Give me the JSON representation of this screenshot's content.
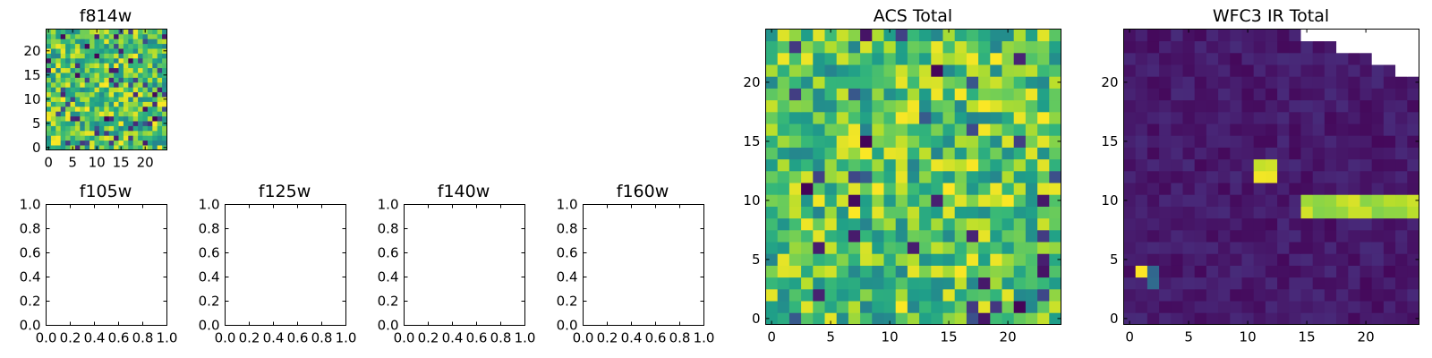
{
  "chart_data": [
    {
      "id": "p0",
      "type": "heatmap",
      "title": "f814w",
      "xlim": [
        -0.5,
        24.5
      ],
      "ylim": [
        -0.5,
        24.5
      ],
      "xticks": [
        0,
        5,
        10,
        15,
        20
      ],
      "yticks": [
        0,
        5,
        10,
        15,
        20
      ],
      "xtick_labels": [
        "0",
        "5",
        "10",
        "15",
        "20"
      ],
      "ytick_labels": [
        "0",
        "5",
        "10",
        "15",
        "20"
      ],
      "colormap": "viridis",
      "grid": false,
      "field": "noise"
    },
    {
      "id": "p1",
      "type": "heatmap",
      "title": "f105w",
      "xlim": [
        0,
        1
      ],
      "ylim": [
        0,
        1
      ],
      "xticks": [
        0,
        0.2,
        0.4,
        0.6,
        0.8,
        1.0
      ],
      "yticks": [
        0,
        0.2,
        0.4,
        0.6,
        0.8,
        1.0
      ],
      "xtick_labels": [
        "0.0",
        "0.2",
        "0.4",
        "0.6",
        "0.8",
        "1.0"
      ],
      "ytick_labels": [
        "0.0",
        "0.2",
        "0.4",
        "0.6",
        "0.8",
        "1.0"
      ],
      "grid": false,
      "field": "empty"
    },
    {
      "id": "p2",
      "type": "heatmap",
      "title": "f125w",
      "xlim": [
        0,
        1
      ],
      "ylim": [
        0,
        1
      ],
      "xticks": [
        0,
        0.2,
        0.4,
        0.6,
        0.8,
        1.0
      ],
      "yticks": [
        0,
        0.2,
        0.4,
        0.6,
        0.8,
        1.0
      ],
      "xtick_labels": [
        "0.0",
        "0.2",
        "0.4",
        "0.6",
        "0.8",
        "1.0"
      ],
      "ytick_labels": [
        "0.0",
        "0.2",
        "0.4",
        "0.6",
        "0.8",
        "1.0"
      ],
      "grid": false,
      "field": "empty"
    },
    {
      "id": "p3",
      "type": "heatmap",
      "title": "f140w",
      "xlim": [
        0,
        1
      ],
      "ylim": [
        0,
        1
      ],
      "xticks": [
        0,
        0.2,
        0.4,
        0.6,
        0.8,
        1.0
      ],
      "yticks": [
        0,
        0.2,
        0.4,
        0.6,
        0.8,
        1.0
      ],
      "xtick_labels": [
        "0.0",
        "0.2",
        "0.4",
        "0.6",
        "0.8",
        "1.0"
      ],
      "ytick_labels": [
        "0.0",
        "0.2",
        "0.4",
        "0.6",
        "0.8",
        "1.0"
      ],
      "grid": false,
      "field": "empty"
    },
    {
      "id": "p4",
      "type": "heatmap",
      "title": "f160w",
      "xlim": [
        0,
        1
      ],
      "ylim": [
        0,
        1
      ],
      "xticks": [
        0,
        0.2,
        0.4,
        0.6,
        0.8,
        1.0
      ],
      "yticks": [
        0,
        0.2,
        0.4,
        0.6,
        0.8,
        1.0
      ],
      "xtick_labels": [
        "0.0",
        "0.2",
        "0.4",
        "0.6",
        "0.8",
        "1.0"
      ],
      "ytick_labels": [
        "0.0",
        "0.2",
        "0.4",
        "0.6",
        "0.8",
        "1.0"
      ],
      "grid": false,
      "field": "empty"
    },
    {
      "id": "p5",
      "type": "heatmap",
      "title": "ACS Total",
      "xlim": [
        -0.5,
        24.5
      ],
      "ylim": [
        -0.5,
        24.5
      ],
      "xticks": [
        0,
        5,
        10,
        15,
        20
      ],
      "yticks": [
        0,
        5,
        10,
        15,
        20
      ],
      "xtick_labels": [
        "0",
        "5",
        "10",
        "15",
        "20"
      ],
      "ytick_labels": [
        "0",
        "5",
        "10",
        "15",
        "20"
      ],
      "colormap": "viridis",
      "grid": false,
      "field": "noise"
    },
    {
      "id": "p6",
      "type": "heatmap",
      "title": "WFC3 IR Total",
      "xlim": [
        -0.5,
        24.5
      ],
      "ylim": [
        -0.5,
        24.5
      ],
      "xticks": [
        0,
        5,
        10,
        15,
        20
      ],
      "yticks": [
        0,
        5,
        10,
        15,
        20
      ],
      "xtick_labels": [
        "0",
        "5",
        "10",
        "15",
        "20"
      ],
      "ytick_labels": [
        "0",
        "5",
        "10",
        "15",
        "20"
      ],
      "colormap": "viridis",
      "grid": false,
      "field": "sources",
      "bright_regions": [
        {
          "x": [
            11,
            12
          ],
          "y": [
            12,
            13
          ],
          "level": 0.85
        },
        {
          "x": [
            15,
            24
          ],
          "y": [
            9,
            10
          ],
          "level": 0.8
        },
        {
          "x": [
            1,
            1
          ],
          "y": [
            4,
            4
          ],
          "level": 0.95
        },
        {
          "x": [
            2,
            2
          ],
          "y": [
            3,
            4
          ],
          "level": 0.3
        }
      ],
      "masked_cells_top_right": [
        {
          "x_from": 15,
          "y": 24
        },
        {
          "x_from": 18,
          "y": 23
        },
        {
          "x_from": 21,
          "y": 22
        },
        {
          "x_from": 23,
          "y": 21
        }
      ]
    }
  ]
}
